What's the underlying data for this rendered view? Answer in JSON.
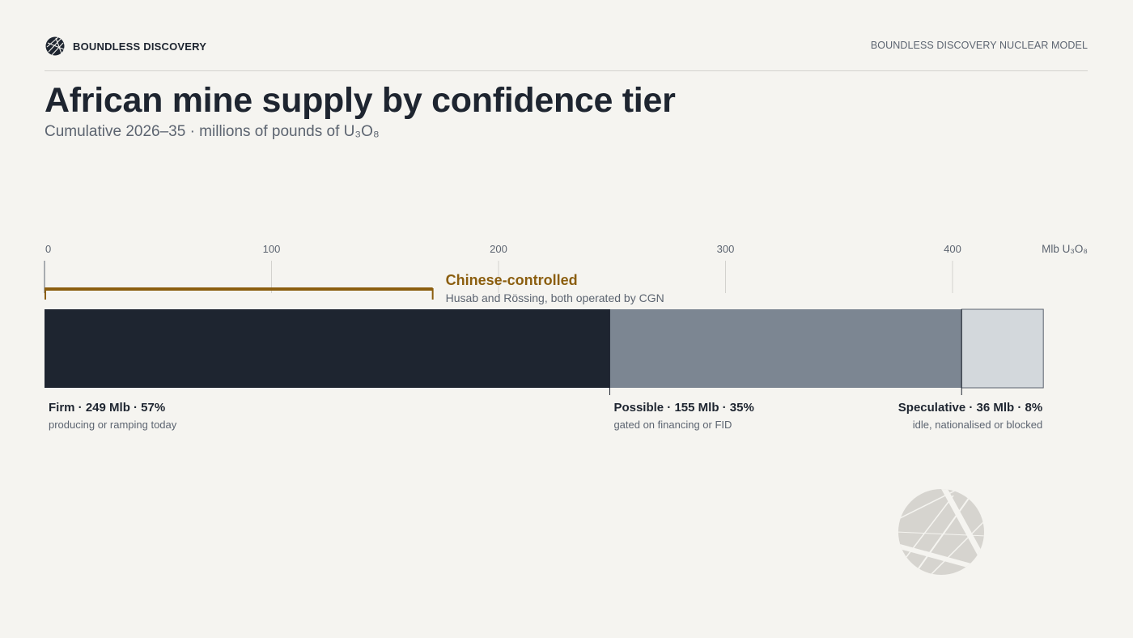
{
  "header": {
    "brand_name": "BOUNDLESS DISCOVERY",
    "model_label": "BOUNDLESS DISCOVERY NUCLEAR MODEL"
  },
  "title": "African mine supply by confidence tier",
  "subtitle": "Cumulative 2026–35 · millions of pounds of U₃O₈",
  "chart_data": {
    "type": "bar",
    "orientation": "horizontal-stacked",
    "unit": "Mlb U₃O₈",
    "xlim": [
      0,
      440
    ],
    "ticks": [
      0,
      100,
      200,
      300,
      400
    ],
    "series": [
      {
        "name": "Firm",
        "value": 249,
        "label": "Firm · 249 Mlb · 57%",
        "note": "producing or ramping today",
        "color": "#1e2530"
      },
      {
        "name": "Possible",
        "value": 155,
        "label": "Possible · 155 Mlb · 35%",
        "note": "gated on financing or FID",
        "color": "#7c8692"
      },
      {
        "name": "Speculative",
        "value": 36,
        "label": "Speculative · 36 Mlb · 8%",
        "note": "idle, nationalised or blocked",
        "color": "#d3d8dc"
      }
    ],
    "annotation": {
      "title": "Chinese-controlled",
      "text": "Husab and Rössing, both operated by CGN",
      "start": 0,
      "end": 171,
      "color": "#8b5e0f"
    }
  }
}
